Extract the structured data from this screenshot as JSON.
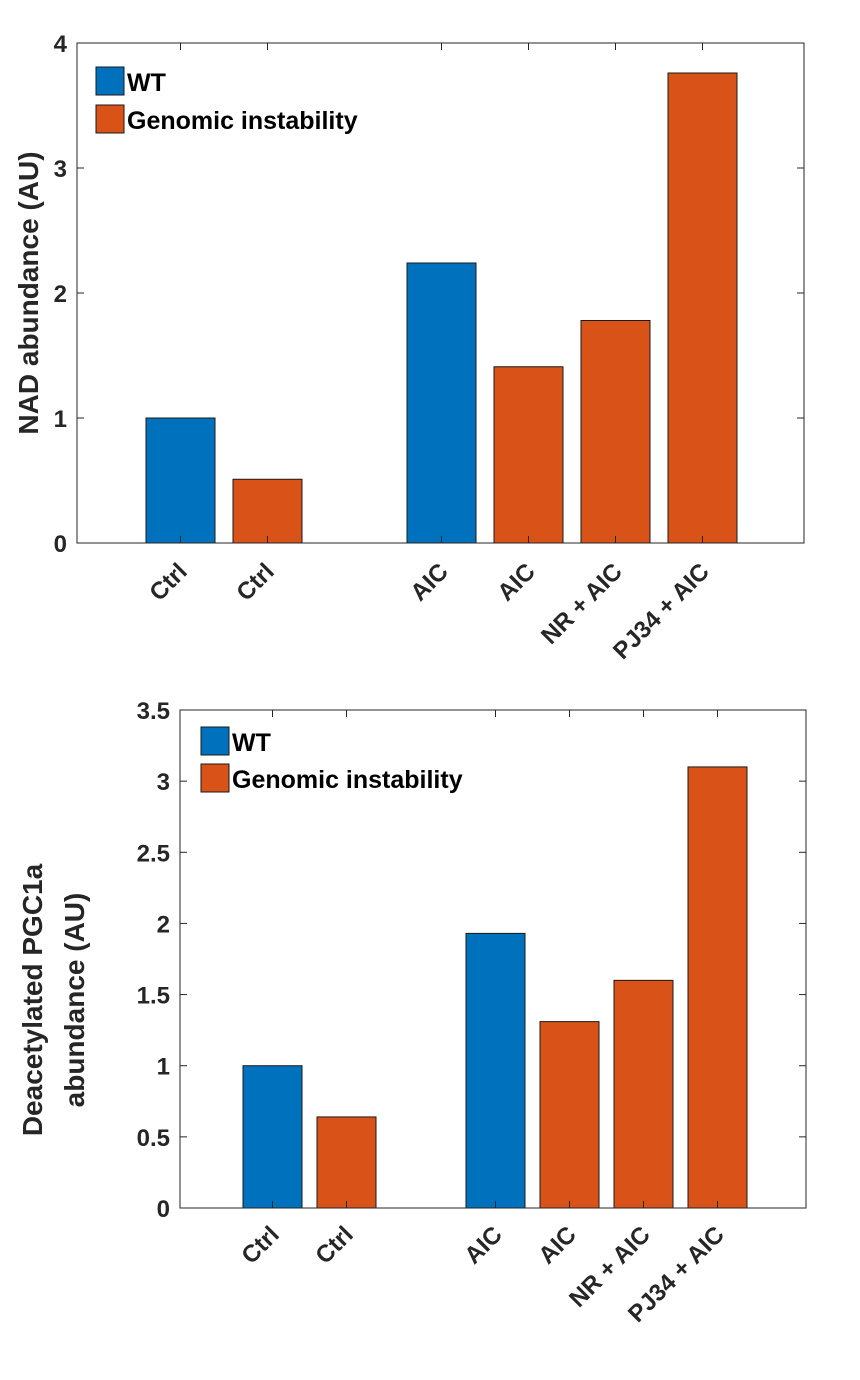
{
  "chart_data": [
    {
      "type": "bar",
      "categories": [
        "Ctrl",
        "Ctrl",
        "AIC",
        "AIC",
        "NR + AIC",
        "PJ34 + AIC"
      ],
      "values": [
        1.0,
        0.51,
        2.24,
        1.41,
        1.78,
        3.76
      ],
      "groups": [
        "WT",
        "Genomic instability",
        "WT",
        "Genomic instability",
        "Genomic instability",
        "Genomic instability"
      ],
      "ylabel": [
        "NAD abundance (AU)"
      ],
      "ylim": [
        0,
        4
      ],
      "yticks": [
        0,
        1,
        2,
        3,
        4
      ],
      "ytick_labels": [
        "0",
        "1",
        "2",
        "3",
        "4"
      ],
      "legend": [
        {
          "name": "WT",
          "color": "#0072BD"
        },
        {
          "name": "Genomic instability",
          "color": "#D95319"
        }
      ],
      "legend_position": "top-left",
      "grid": false
    },
    {
      "type": "bar",
      "categories": [
        "Ctrl",
        "Ctrl",
        "AIC",
        "AIC",
        "NR + AIC",
        "PJ34 + AIC"
      ],
      "values": [
        1.0,
        0.64,
        1.93,
        1.31,
        1.6,
        3.1
      ],
      "groups": [
        "WT",
        "Genomic instability",
        "WT",
        "Genomic instability",
        "Genomic instability",
        "Genomic instability"
      ],
      "ylabel": [
        "Deacetylated PGC1a",
        "abundance (AU)"
      ],
      "ylim": [
        0,
        3.5
      ],
      "yticks": [
        0,
        0.5,
        1,
        1.5,
        2,
        2.5,
        3,
        3.5
      ],
      "ytick_labels": [
        "0",
        "0.5",
        "1",
        "1.5",
        "2",
        "2.5",
        "3",
        "3.5"
      ],
      "legend": [
        {
          "name": "WT",
          "color": "#0072BD"
        },
        {
          "name": "Genomic instability",
          "color": "#D95319"
        }
      ],
      "legend_position": "top-left",
      "grid": false
    }
  ]
}
